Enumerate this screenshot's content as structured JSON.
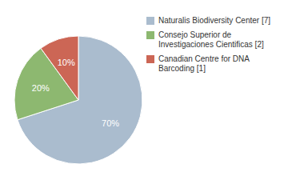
{
  "chart_data": {
    "type": "pie",
    "categories": [
      "Naturalis Biodiversity Center [7]",
      "Consejo Superior de\nInvestigaciones Cientificas [2]",
      "Canadian Centre for DNA\nBarcoding [1]"
    ],
    "values": [
      70,
      20,
      10
    ],
    "value_labels": [
      "70%",
      "20%",
      "10%"
    ],
    "colors": [
      "#aabcce",
      "#8db870",
      "#cc6655"
    ],
    "data_labels": true,
    "legend": "upper right"
  }
}
